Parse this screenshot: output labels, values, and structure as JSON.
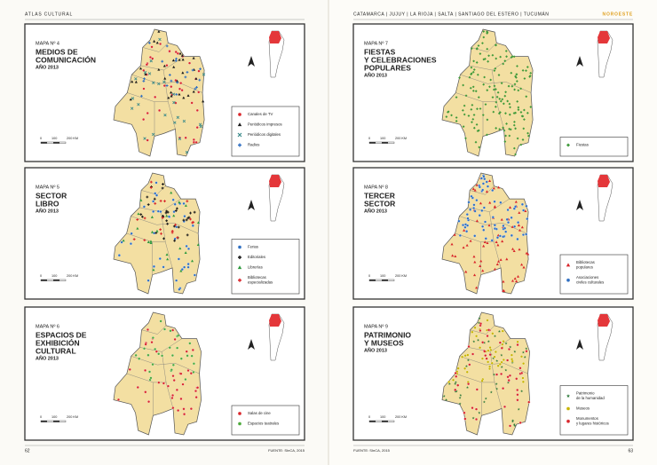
{
  "header": {
    "left": "ATLAS CULTURAL",
    "right": "CATAMARCA | JUJUY | LA RIOJA | SALTA | SANTIAGO DEL ESTERO | TUCUMÁN",
    "region": "NOROESTE"
  },
  "footer": {
    "left_page": "62",
    "left_source": "FUENTE: SInCA, 2015",
    "right_source": "FUENTE: SInCA, 2015",
    "right_page": "63"
  },
  "maps": [
    {
      "number": "MAPA Nº 4",
      "title": [
        "MEDIOS DE",
        "COMUNICACIÓN"
      ],
      "year": "AÑO 2013",
      "scale": [
        "0",
        "100",
        "200 KM"
      ],
      "legend": [
        {
          "label": [
            "Canales de TV"
          ],
          "marker": "circle",
          "color": "#d9262b"
        },
        {
          "label": [
            "Periódicos impresos"
          ],
          "marker": "triangle",
          "color": "#1a1a1a"
        },
        {
          "label": [
            "Periódicos digitales"
          ],
          "marker": "x",
          "color": "#3a8a8a"
        },
        {
          "label": [
            "Radios"
          ],
          "marker": "plus",
          "color": "#2f6fc2"
        }
      ]
    },
    {
      "number": "MAPA Nº 5",
      "title": [
        "SECTOR",
        "LIBRO"
      ],
      "year": "AÑO 2013",
      "scale": [
        "0",
        "100",
        "200 KM"
      ],
      "legend": [
        {
          "label": [
            "Ferias"
          ],
          "marker": "circle",
          "color": "#2f6fc2"
        },
        {
          "label": [
            "Editoriales"
          ],
          "marker": "plus",
          "color": "#1a1a1a"
        },
        {
          "label": [
            "Librerías"
          ],
          "marker": "triangle",
          "color": "#2e9a3e"
        },
        {
          "label": [
            "Bibliotecas",
            "especializadas"
          ],
          "marker": "plus",
          "color": "#d9262b"
        }
      ]
    },
    {
      "number": "MAPA Nº 6",
      "title": [
        "ESPACIOS DE",
        "EXHIBICIÓN",
        "CULTURAL"
      ],
      "year": "AÑO 2013",
      "scale": [
        "0",
        "100",
        "200 KM"
      ],
      "legend": [
        {
          "label": [
            "Salas de cine"
          ],
          "marker": "circle",
          "color": "#d9262b"
        },
        {
          "label": [
            "Espacios teatrales"
          ],
          "marker": "circle",
          "color": "#4caa3c"
        }
      ]
    },
    {
      "number": "MAPA Nº 7",
      "title": [
        "FIESTAS",
        "Y CELEBRACIONES",
        "POPULARES"
      ],
      "year": "AÑO 2013",
      "scale": [
        "0",
        "100",
        "200 KM"
      ],
      "legend": [
        {
          "label": [
            "Fiestas"
          ],
          "marker": "diamond",
          "color": "#3f9a3a"
        }
      ]
    },
    {
      "number": "MAPA Nº 8",
      "title": [
        "TERCER",
        "SECTOR"
      ],
      "year": "AÑO 2013",
      "scale": [
        "0",
        "100",
        "200 KM"
      ],
      "legend": [
        {
          "label": [
            "Bibliotecas",
            "populares"
          ],
          "marker": "triangle",
          "color": "#d9262b"
        },
        {
          "label": [
            "Asociaciones",
            "civiles culturales"
          ],
          "marker": "circle",
          "color": "#2f6fc2"
        }
      ]
    },
    {
      "number": "MAPA Nº 9",
      "title": [
        "PATRIMONIO",
        "Y MUSEOS"
      ],
      "year": "AÑO 2013",
      "scale": [
        "0",
        "100",
        "200 KM"
      ],
      "legend": [
        {
          "label": [
            "Patrimonio",
            "de la humanidad"
          ],
          "marker": "star",
          "color": "#2e7a3a"
        },
        {
          "label": [
            "Museos"
          ],
          "marker": "circle",
          "color": "#c8b400"
        },
        {
          "label": [
            "Monumentos",
            "y lugares históricos"
          ],
          "marker": "circle",
          "color": "#d9262b"
        }
      ]
    }
  ]
}
